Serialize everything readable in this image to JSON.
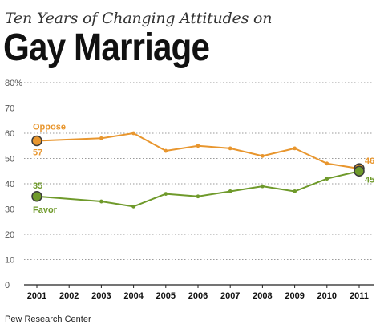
{
  "chart_data": {
    "type": "line",
    "subtitle": "Ten Years of Changing Attitudes on",
    "title": "Gay Marriage",
    "source": "Pew Research Center",
    "categories": [
      "2001",
      "2002",
      "2003",
      "2004",
      "2005",
      "2006",
      "2007",
      "2008",
      "2009",
      "2010",
      "2011"
    ],
    "ylim": [
      0,
      80
    ],
    "y_ticks": [
      "0",
      "10",
      "20",
      "30",
      "40",
      "50",
      "60",
      "70",
      "80%"
    ],
    "grid": true,
    "series": [
      {
        "name": "Oppose",
        "color": "#e8962e",
        "points": [
          [
            2001,
            57
          ],
          [
            2003,
            58
          ],
          [
            2004,
            60
          ],
          [
            2005,
            53
          ],
          [
            2006,
            55
          ],
          [
            2007,
            54
          ],
          [
            2008,
            51
          ],
          [
            2009,
            54
          ],
          [
            2010,
            48
          ],
          [
            2011,
            46
          ]
        ],
        "start_label": "57",
        "end_label": "46"
      },
      {
        "name": "Favor",
        "color": "#6f9a2b",
        "points": [
          [
            2001,
            35
          ],
          [
            2003,
            33
          ],
          [
            2004,
            31
          ],
          [
            2005,
            36
          ],
          [
            2006,
            35
          ],
          [
            2007,
            37
          ],
          [
            2008,
            39
          ],
          [
            2009,
            37
          ],
          [
            2010,
            42
          ],
          [
            2011,
            45
          ]
        ],
        "start_label": "35",
        "end_label": "45"
      }
    ]
  }
}
